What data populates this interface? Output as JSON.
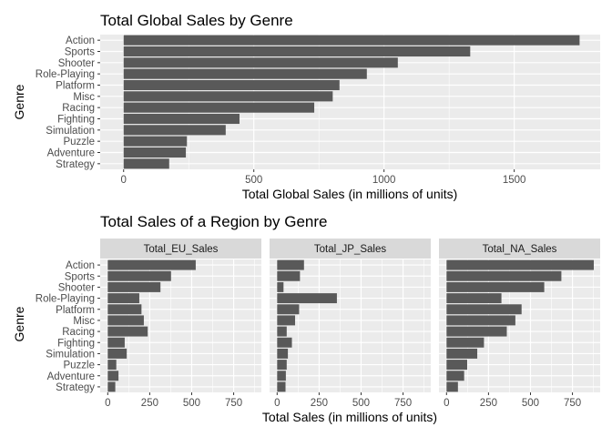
{
  "chart_data": [
    {
      "type": "bar",
      "orientation": "horizontal",
      "title": "Total Global Sales by Genre",
      "xlabel": "Total Global Sales (in millions of units)",
      "ylabel": "Genre",
      "categories": [
        "Action",
        "Sports",
        "Shooter",
        "Role-Playing",
        "Platform",
        "Misc",
        "Racing",
        "Fighting",
        "Simulation",
        "Puzzle",
        "Adventure",
        "Strategy"
      ],
      "values": [
        1751,
        1331,
        1053,
        934,
        829,
        803,
        732,
        445,
        392,
        243,
        239,
        175
      ],
      "xlim": [
        -90,
        1830
      ],
      "xticks": [
        0,
        500,
        1000,
        1500
      ],
      "bar_color": "#595959",
      "panel_background": "#ebebeb",
      "grid": true
    },
    {
      "type": "bar",
      "orientation": "horizontal",
      "title": "Total Sales of a Region by Genre",
      "xlabel": "Total Sales (in millions of units)",
      "ylabel": "Genre",
      "categories": [
        "Action",
        "Sports",
        "Shooter",
        "Role-Playing",
        "Platform",
        "Misc",
        "Racing",
        "Fighting",
        "Simulation",
        "Puzzle",
        "Adventure",
        "Strategy"
      ],
      "facets": [
        {
          "name": "Total_EU_Sales",
          "values": [
            524,
            377,
            314,
            188,
            201,
            215,
            238,
            101,
            113,
            51,
            64,
            45
          ]
        },
        {
          "name": "Total_JP_Sales",
          "values": [
            160,
            136,
            38,
            356,
            131,
            107,
            57,
            88,
            64,
            57,
            52,
            50
          ]
        },
        {
          "name": "Total_NA_Sales",
          "values": [
            877,
            684,
            582,
            327,
            447,
            410,
            359,
            223,
            183,
            123,
            105,
            68
          ]
        }
      ],
      "xlim": [
        -45,
        915
      ],
      "xticks": [
        0,
        250,
        500,
        750
      ],
      "bar_color": "#595959",
      "panel_background": "#ebebeb",
      "strip_background": "#d9d9d9",
      "grid": true
    }
  ]
}
